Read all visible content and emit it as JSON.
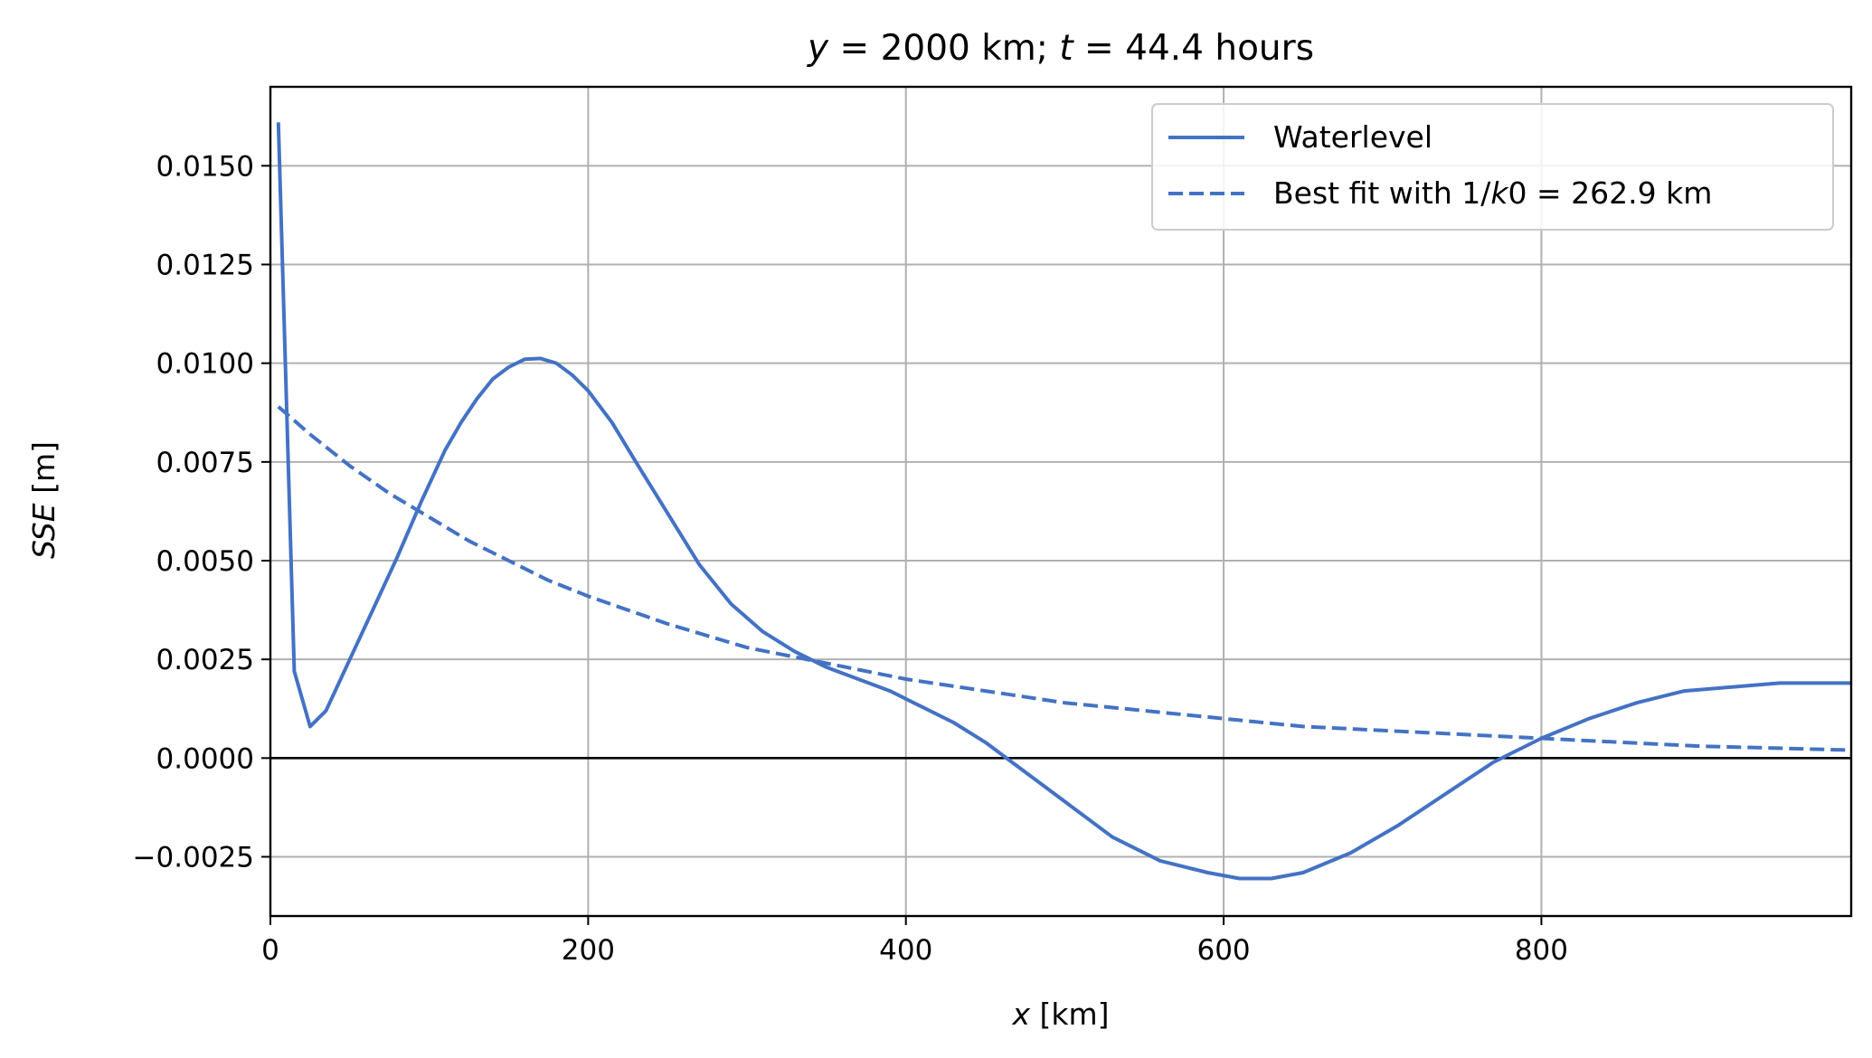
{
  "chart_data": {
    "type": "line",
    "title": {
      "y_var": "y",
      "y_value": "2000 km",
      "t_var": "t",
      "t_value": "44.4 hours"
    },
    "xlabel": {
      "var": "x",
      "unit": "[km]"
    },
    "ylabel": {
      "var": "SSE",
      "unit": "[m]"
    },
    "xlim": [
      0,
      995
    ],
    "ylim": [
      -0.004,
      0.017
    ],
    "xticks": [
      0,
      200,
      400,
      600,
      800
    ],
    "xtick_labels": [
      "0",
      "200",
      "400",
      "600",
      "800"
    ],
    "yticks": [
      -0.0025,
      0.0,
      0.0025,
      0.005,
      0.0075,
      0.01,
      0.0125,
      0.015
    ],
    "ytick_labels": [
      "−0.0025",
      "0.0000",
      "0.0025",
      "0.0050",
      "0.0075",
      "0.0100",
      "0.0125",
      "0.0150"
    ],
    "grid": true,
    "zero_line": true,
    "legend_position": "top-right",
    "series": [
      {
        "name": "Waterlevel",
        "style": "solid",
        "color": "#4472c4",
        "x": [
          5,
          15,
          25,
          35,
          50,
          65,
          80,
          95,
          110,
          120,
          130,
          140,
          150,
          160,
          170,
          180,
          190,
          200,
          215,
          230,
          250,
          270,
          290,
          310,
          330,
          350,
          370,
          390,
          410,
          430,
          450,
          470,
          500,
          530,
          560,
          590,
          610,
          630,
          650,
          680,
          710,
          740,
          770,
          800,
          830,
          860,
          890,
          920,
          950,
          995
        ],
        "y": [
          0.0161,
          0.0022,
          0.0008,
          0.0012,
          0.0025,
          0.0038,
          0.0051,
          0.0065,
          0.0078,
          0.0085,
          0.0091,
          0.0096,
          0.0099,
          0.0101,
          0.01012,
          0.01,
          0.0097,
          0.0093,
          0.0085,
          0.0075,
          0.0062,
          0.0049,
          0.0039,
          0.0032,
          0.0027,
          0.0023,
          0.002,
          0.0017,
          0.0013,
          0.0009,
          0.0004,
          -0.0002,
          -0.0011,
          -0.002,
          -0.0026,
          -0.0029,
          -0.00305,
          -0.00305,
          -0.0029,
          -0.0024,
          -0.0017,
          -0.0009,
          -0.0001,
          0.0005,
          0.001,
          0.0014,
          0.0017,
          0.0018,
          0.0019,
          0.0019
        ]
      },
      {
        "name": "Best fit with 1/k0 = 262.9 km",
        "label_parts": {
          "prefix": "Best fit with ",
          "ratio": "1/",
          "var": "k",
          "rest": "0 = 262.9 km"
        },
        "style": "dashed",
        "color": "#4472c4",
        "x": [
          5,
          25,
          50,
          75,
          100,
          125,
          150,
          175,
          200,
          250,
          300,
          350,
          400,
          450,
          500,
          550,
          600,
          650,
          700,
          750,
          800,
          850,
          900,
          950,
          995
        ],
        "y": [
          0.0089,
          0.0082,
          0.0074,
          0.0067,
          0.0061,
          0.0055,
          0.005,
          0.0045,
          0.0041,
          0.0034,
          0.0028,
          0.0024,
          0.002,
          0.0017,
          0.0014,
          0.0012,
          0.001,
          0.0008,
          0.0007,
          0.0006,
          0.0005,
          0.0004,
          0.0003,
          0.00025,
          0.0002
        ]
      }
    ]
  }
}
